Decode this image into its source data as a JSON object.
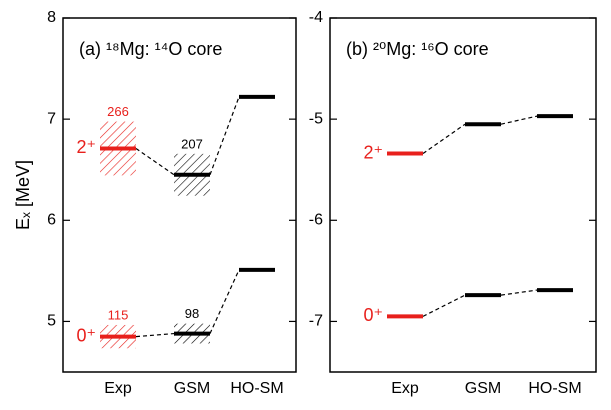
{
  "chart_data": [
    {
      "type": "level",
      "title": "(a) ¹⁸Mg: ¹⁴O core",
      "y_label": "Eₓ [MeV]",
      "categories": [
        "Exp",
        "GSM",
        "HO-SM"
      ],
      "colors": [
        "#e8201c",
        "#000000",
        "#000000"
      ],
      "ylim": [
        4.5,
        8
      ],
      "yticks": [
        5,
        6,
        7,
        8
      ],
      "series": [
        {
          "name": "0⁺",
          "values": [
            4.85,
            4.88,
            5.51
          ],
          "widths": [
            115,
            98,
            null
          ]
        },
        {
          "name": "2⁺",
          "values": [
            6.71,
            6.45,
            7.22
          ],
          "widths": [
            266,
            207,
            null
          ]
        }
      ]
    },
    {
      "type": "level",
      "title": "(b) ²⁰Mg: ¹⁶O core",
      "categories": [
        "Exp",
        "GSM",
        "HO-SM"
      ],
      "colors": [
        "#e8201c",
        "#000000",
        "#000000"
      ],
      "ylim": [
        -7.5,
        -4
      ],
      "yticks": [
        -7,
        -6,
        -5,
        -4
      ],
      "series": [
        {
          "name": "0⁺",
          "values": [
            -6.95,
            -6.74,
            -6.69
          ]
        },
        {
          "name": "2⁺",
          "values": [
            -5.34,
            -5.05,
            -4.97
          ]
        }
      ]
    }
  ]
}
